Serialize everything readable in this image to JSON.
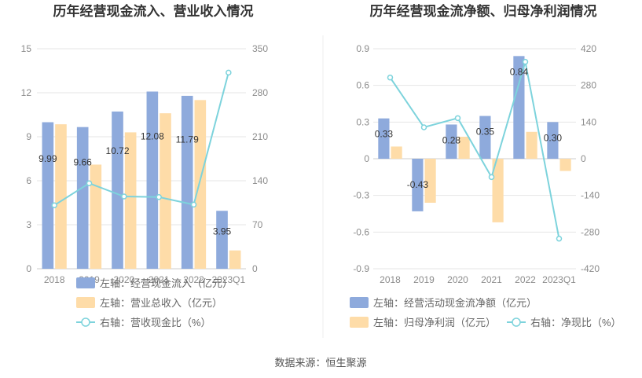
{
  "source_text": "数据来源：恒生聚源",
  "colors": {
    "bar_blue": "#8eaadc",
    "bar_orange": "#fedca8",
    "line": "#7dd3dc",
    "grid": "#e6e6e6",
    "axis": "#cccccc",
    "divider": "#eeeeee"
  },
  "chart_data": [
    {
      "type": "bar",
      "title": "历年经营现金流入、营业收入情况",
      "categories": [
        "2018",
        "2019",
        "2020",
        "2021",
        "2022",
        "2023Q1"
      ],
      "left_axis": {
        "min": 0,
        "max": 15,
        "ticks": [
          "0",
          "3",
          "6",
          "9",
          "12",
          "15"
        ]
      },
      "right_axis": {
        "min": 0,
        "max": 350,
        "ticks": [
          "0",
          "70",
          "140",
          "210",
          "280",
          "350"
        ]
      },
      "series": [
        {
          "name": "左轴：经营现金流入（亿元）",
          "type": "bar",
          "axis": "left",
          "color": "#8eaadc",
          "values": [
            9.99,
            9.66,
            10.72,
            12.08,
            11.79,
            3.95
          ],
          "labels": [
            "9.99",
            "9.66",
            "10.72",
            "12.08",
            "11.79",
            "3.95"
          ]
        },
        {
          "name": "左轴：营业总收入（亿元）",
          "type": "bar",
          "axis": "left",
          "color": "#fedca8",
          "values": [
            9.85,
            7.1,
            9.3,
            10.6,
            11.5,
            1.25
          ]
        },
        {
          "name": "右轴：营收现金比（%）",
          "type": "line",
          "axis": "right",
          "color": "#7dd3dc",
          "values": [
            101,
            136,
            115,
            114,
            102,
            312
          ]
        }
      ],
      "legend_position": "bottom",
      "grid": true
    },
    {
      "type": "bar",
      "title": "历年经营现金流净额、归母净利润情况",
      "categories": [
        "2018",
        "2019",
        "2020",
        "2021",
        "2022",
        "2023Q1"
      ],
      "left_axis": {
        "min": -0.9,
        "max": 0.9,
        "ticks": [
          "-0.9",
          "-0.6",
          "-0.3",
          "0",
          "0.3",
          "0.6",
          "0.9"
        ]
      },
      "right_axis": {
        "min": -420,
        "max": 420,
        "ticks": [
          "-420",
          "-280",
          "-140",
          "0",
          "140",
          "280",
          "420"
        ]
      },
      "series": [
        {
          "name": "左轴：经营活动现金流净额（亿元）",
          "type": "bar",
          "axis": "left",
          "color": "#8eaadc",
          "values": [
            0.33,
            -0.43,
            0.28,
            0.35,
            0.84,
            0.3
          ],
          "labels": [
            "0.33",
            "-0.43",
            "0.28",
            "0.35",
            "0.84",
            "0.30"
          ]
        },
        {
          "name": "左轴：归母净利润（亿元）",
          "type": "bar",
          "axis": "left",
          "color": "#fedca8",
          "values": [
            0.1,
            -0.36,
            0.18,
            -0.52,
            0.22,
            -0.1
          ]
        },
        {
          "name": "右轴：净现比（%）",
          "type": "line",
          "axis": "right",
          "color": "#7dd3dc",
          "values": [
            310,
            120,
            155,
            -70,
            370,
            -305
          ]
        }
      ],
      "legend_position": "bottom",
      "grid": true
    }
  ]
}
